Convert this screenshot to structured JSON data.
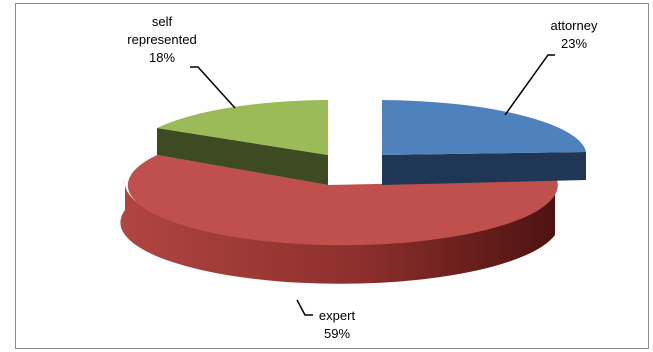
{
  "chart_data": {
    "type": "pie",
    "style": "3d-exploded",
    "title": "",
    "slices": [
      {
        "label": "attorney",
        "value": 23,
        "percent_label": "23%",
        "color": "#4f81bd",
        "side_color": "#1f3655"
      },
      {
        "label": "expert",
        "value": 59,
        "percent_label": "59%",
        "color": "#c0504d",
        "side_color": "#6e1e1c"
      },
      {
        "label": "self represented",
        "label_lines": [
          "self",
          "represented"
        ],
        "value": 18,
        "percent_label": "18%",
        "color": "#9bbb59",
        "side_color": "#3d4a22"
      }
    ],
    "legend": "none",
    "data_labels": "category-name-and-percent"
  }
}
